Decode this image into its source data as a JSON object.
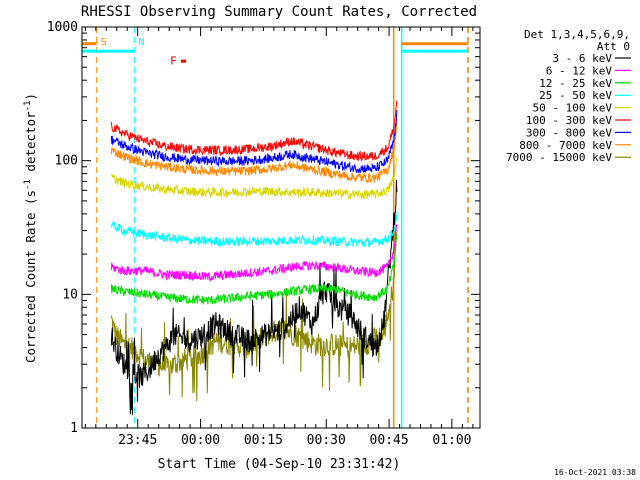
{
  "chart_data": {
    "type": "line",
    "title": "RHESSI Observing Summary Count Rates, Corrected",
    "xlabel": "Start Time (04-Sep-10 23:31:42)",
    "ylabel": "Corrected Count Rate (s",
    "ylabel_sup1": "-1",
    "ylabel_mid": " detector",
    "ylabel_sup2": "-1",
    "ylabel_end": ")",
    "timestamp": "16-Oct-2021 03:38",
    "y_scale": "log",
    "ylim": [
      1,
      1000
    ],
    "y_ticks": [
      {
        "value": 1,
        "label": "1"
      },
      {
        "value": 10,
        "label": "10"
      },
      {
        "value": 100,
        "label": "100"
      },
      {
        "value": 1000,
        "label": "1000"
      }
    ],
    "x_ticks": [
      {
        "minute": 13.3,
        "label": "23:45"
      },
      {
        "minute": 28.3,
        "label": "00:00"
      },
      {
        "minute": 43.3,
        "label": "00:15"
      },
      {
        "minute": 58.3,
        "label": "00:30"
      },
      {
        "minute": 73.3,
        "label": "00:45"
      },
      {
        "minute": 88.3,
        "label": "01:00"
      }
    ],
    "xlim_minutes": [
      0,
      95
    ],
    "legend": {
      "placement": "right",
      "header1": "Det 1,3,4,5,6,9,",
      "header2": "Att 0"
    },
    "series": [
      {
        "name": "3 - 6 keV",
        "color": "#000000",
        "start": 7,
        "end": 75.2,
        "t": [
          7,
          8,
          9,
          10,
          12,
          14,
          16,
          18,
          20,
          22,
          25,
          28,
          32,
          36,
          40,
          44,
          48,
          52,
          55,
          58,
          61,
          64,
          67,
          70,
          72,
          74,
          75.2
        ],
        "v": [
          5,
          4,
          3.5,
          3,
          2.6,
          2.4,
          2.7,
          3.5,
          4,
          5,
          4.5,
          4.8,
          6,
          5,
          4.5,
          5,
          5.5,
          8,
          6,
          11,
          8,
          7,
          5,
          4,
          6,
          25,
          70
        ]
      },
      {
        "name": "6 - 12 keV",
        "color": "#ff00ff",
        "start": 7,
        "end": 75.2,
        "t": [
          7,
          10,
          15,
          20,
          25,
          30,
          35,
          40,
          45,
          50,
          55,
          60,
          65,
          70,
          73,
          74.5,
          75.2
        ],
        "v": [
          16,
          15,
          15,
          14,
          14,
          13.5,
          14,
          14.5,
          15,
          16,
          16.5,
          16,
          15,
          14.5,
          16,
          22,
          35
        ]
      },
      {
        "name": "12 - 25 keV",
        "color": "#00dd00",
        "start": 7,
        "end": 75.2,
        "t": [
          7,
          10,
          15,
          20,
          25,
          30,
          35,
          40,
          45,
          50,
          55,
          60,
          65,
          70,
          73,
          74.5,
          75.2
        ],
        "v": [
          11,
          10.5,
          10,
          9.5,
          9.2,
          9,
          9.3,
          9.7,
          10,
          10.5,
          11,
          11,
          10,
          9.5,
          11,
          17,
          30
        ]
      },
      {
        "name": "25 - 50 keV",
        "color": "#00ffff",
        "start": 7,
        "end": 75.2,
        "t": [
          7,
          10,
          15,
          20,
          25,
          30,
          35,
          40,
          45,
          50,
          55,
          60,
          65,
          70,
          73,
          74.5,
          75.2
        ],
        "v": [
          33,
          30,
          28,
          26.5,
          25.5,
          25,
          24.8,
          25,
          25,
          25.5,
          25.5,
          25,
          24.5,
          24.5,
          26,
          30,
          40
        ]
      },
      {
        "name": "50 - 100 keV",
        "color": "#d8d800",
        "start": 7,
        "end": 75.2,
        "t": [
          7,
          10,
          15,
          20,
          25,
          30,
          35,
          40,
          45,
          50,
          55,
          60,
          65,
          70,
          73,
          74.5,
          75.2
        ],
        "v": [
          75,
          68,
          64,
          61,
          59,
          58,
          58,
          59,
          59,
          58,
          58,
          57,
          56,
          56,
          60,
          75,
          110
        ]
      },
      {
        "name": "100 - 300 keV",
        "color": "#ff0000",
        "start": 7,
        "end": 75.2,
        "t": [
          7,
          10,
          15,
          20,
          25,
          30,
          35,
          40,
          45,
          50,
          55,
          60,
          65,
          70,
          73,
          74.5,
          75.2
        ],
        "v": [
          180,
          160,
          140,
          128,
          122,
          120,
          120,
          122,
          128,
          140,
          128,
          116,
          108,
          108,
          125,
          180,
          290
        ]
      },
      {
        "name": "300 - 800 keV",
        "color": "#0000ff",
        "start": 7,
        "end": 75.2,
        "t": [
          7,
          10,
          15,
          20,
          25,
          30,
          35,
          40,
          45,
          50,
          55,
          60,
          65,
          70,
          73,
          74.5,
          75.2
        ],
        "v": [
          145,
          130,
          115,
          107,
          102,
          100,
          99,
          100,
          104,
          112,
          103,
          95,
          88,
          87,
          100,
          145,
          230
        ]
      },
      {
        "name": "800 - 7000 keV",
        "color": "#ff8800",
        "start": 7,
        "end": 75.2,
        "t": [
          7,
          10,
          15,
          20,
          25,
          30,
          35,
          40,
          45,
          50,
          55,
          60,
          65,
          70,
          73,
          74.5,
          75.2
        ],
        "v": [
          120,
          108,
          96,
          90,
          86,
          84,
          83,
          84,
          87,
          93,
          86,
          80,
          75,
          74,
          85,
          125,
          200
        ]
      },
      {
        "name": "7000 - 15000 keV",
        "color": "#888800",
        "start": 7,
        "end": 75.2,
        "t": [
          7,
          8,
          10,
          12,
          15,
          18,
          20,
          24,
          28,
          32,
          36,
          40,
          44,
          48,
          52,
          56,
          60,
          64,
          68,
          72,
          74,
          75.2
        ],
        "v": [
          6.5,
          5,
          4.2,
          4,
          3.2,
          3,
          2.8,
          3.2,
          3.5,
          4.5,
          4.2,
          4,
          5,
          5.5,
          4.8,
          4.2,
          4.2,
          4,
          4.3,
          5,
          10,
          30
        ]
      }
    ],
    "attenuator_and_orbit_markers": [
      {
        "label": "S",
        "color": "#ff8800",
        "text_color": "#ff8800",
        "style": "dashed",
        "minute": 3.5
      },
      {
        "label": "N",
        "color": "#00ffff",
        "text_color": "#00ffff",
        "style": "dashed",
        "minute": 12.5
      },
      {
        "label": "",
        "color": "#00ffff",
        "style": "dashed",
        "minute": 92
      },
      {
        "label": "",
        "color": "#ff8800",
        "style": "dashed",
        "minute": 92.2
      },
      {
        "label": "",
        "color": "#ff8800",
        "style": "solid",
        "minute": 74.4
      },
      {
        "label": "",
        "color": "#00ffff",
        "style": "solid",
        "minute": 76.3
      }
    ],
    "flag_bars": [
      {
        "color": "#ff8800",
        "value": 750,
        "from": 0,
        "to": 3.5
      },
      {
        "color": "#ff8800",
        "value": 750,
        "from": 76.3,
        "to": 92.2
      },
      {
        "color": "#00ffff",
        "value": 660,
        "from": 0,
        "to": 12.5
      },
      {
        "color": "#00ffff",
        "value": 660,
        "from": 76.3,
        "to": 92
      }
    ],
    "flare_flag": {
      "label": "F",
      "color": "#dd0000",
      "minute": 21.5,
      "value": 560
    }
  }
}
